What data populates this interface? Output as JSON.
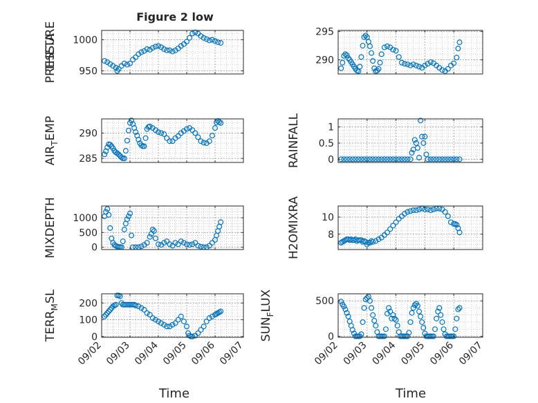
{
  "figure": {
    "title": "Figure 2 low",
    "x_label": "Time"
  },
  "colors": {
    "marker": "#0072bd",
    "axis": "#262626",
    "grid": "#b0b0b0"
  },
  "chart_data": [
    {
      "type": "scatter",
      "ylabel": "PRESSURE",
      "ylim": [
        945,
        1015
      ],
      "yticks": [
        950,
        1000
      ],
      "ytick_labels": [
        "950",
        "1000"
      ],
      "xlim": [
        0,
        5
      ],
      "xticks": [
        0,
        1,
        2,
        3,
        4,
        5
      ],
      "xtick_labels": [
        "09/02",
        "09/03",
        "09/04",
        "09/05",
        "09/06",
        "09/07"
      ],
      "show_xtick_labels": false,
      "grid": true,
      "x": [
        0.1,
        0.2,
        0.3,
        0.4,
        0.5,
        0.55,
        0.6,
        0.7,
        0.8,
        0.9,
        1.0,
        1.1,
        1.2,
        1.3,
        1.4,
        1.5,
        1.6,
        1.7,
        1.8,
        1.9,
        2.0,
        2.1,
        2.2,
        2.3,
        2.4,
        2.5,
        2.6,
        2.7,
        2.8,
        2.9,
        3.0,
        3.1,
        3.2,
        3.3,
        3.4,
        3.5,
        3.6,
        3.7,
        3.8,
        3.9,
        4.0,
        4.1,
        4.2
      ],
      "y": [
        966,
        964,
        961,
        958,
        955,
        950,
        953,
        958,
        962,
        960,
        962,
        968,
        972,
        977,
        980,
        982,
        985,
        984,
        987,
        989,
        990,
        988,
        985,
        983,
        983,
        981,
        983,
        986,
        990,
        993,
        997,
        1003,
        1010,
        1012,
        1010,
        1006,
        1003,
        1001,
        999,
        1000,
        998,
        996,
        995
      ]
    },
    {
      "type": "scatter",
      "ylabel": "THETA",
      "ylim": [
        287.5,
        295.2
      ],
      "yticks": [
        290,
        295
      ],
      "ytick_labels": [
        "290",
        "295"
      ],
      "xlim": [
        0,
        5
      ],
      "xticks": [
        0,
        1,
        2,
        3,
        4,
        5
      ],
      "xtick_labels": [
        "09/02",
        "09/03",
        "09/04",
        "09/05",
        "09/06",
        "09/07"
      ],
      "show_xtick_labels": false,
      "grid": true,
      "x": [
        0.1,
        0.15,
        0.2,
        0.25,
        0.3,
        0.35,
        0.4,
        0.45,
        0.5,
        0.55,
        0.6,
        0.65,
        0.7,
        0.75,
        0.8,
        0.85,
        0.9,
        0.95,
        1.0,
        1.05,
        1.1,
        1.15,
        1.2,
        1.25,
        1.3,
        1.35,
        1.4,
        1.45,
        1.5,
        1.6,
        1.7,
        1.8,
        1.9,
        2.0,
        2.1,
        2.2,
        2.3,
        2.4,
        2.5,
        2.6,
        2.7,
        2.8,
        2.9,
        3.0,
        3.1,
        3.2,
        3.3,
        3.4,
        3.5,
        3.6,
        3.7,
        3.8,
        3.9,
        4.0,
        4.1,
        4.15,
        4.2
      ],
      "y": [
        288.5,
        289.5,
        290.7,
        291,
        290.8,
        290.3,
        290,
        289.6,
        289.2,
        288.8,
        288.4,
        288.1,
        288.0,
        288.8,
        290.5,
        292.5,
        294.0,
        294.3,
        294.0,
        293.2,
        292.4,
        291.2,
        289.8,
        288.5,
        288.0,
        288.1,
        288.4,
        289.5,
        291,
        292.2,
        292.4,
        292.2,
        291.8,
        291.6,
        290.5,
        289.5,
        289.3,
        289.2,
        289.0,
        289.2,
        289.0,
        288.8,
        288.6,
        289.0,
        289.3,
        289.6,
        289.4,
        289.0,
        288.6,
        288.2,
        288.0,
        288.4,
        289.0,
        289.4,
        290.4,
        292.0,
        293.1
      ]
    },
    {
      "type": "scatter",
      "ylabel": "AIR_TEMP",
      "ylim": [
        284.2,
        292.8
      ],
      "yticks": [
        285,
        290
      ],
      "ytick_labels": [
        "285",
        "290"
      ],
      "xlim": [
        0,
        5
      ],
      "xticks": [
        0,
        1,
        2,
        3,
        4,
        5
      ],
      "xtick_labels": [
        "09/02",
        "09/03",
        "09/04",
        "09/05",
        "09/06",
        "09/07"
      ],
      "show_xtick_labels": false,
      "grid": true,
      "x": [
        0.1,
        0.15,
        0.2,
        0.25,
        0.3,
        0.35,
        0.4,
        0.45,
        0.5,
        0.55,
        0.6,
        0.65,
        0.7,
        0.75,
        0.8,
        0.85,
        0.9,
        0.95,
        1.0,
        1.05,
        1.1,
        1.15,
        1.2,
        1.25,
        1.3,
        1.35,
        1.4,
        1.45,
        1.5,
        1.55,
        1.6,
        1.65,
        1.7,
        1.8,
        1.9,
        2.0,
        2.1,
        2.2,
        2.3,
        2.4,
        2.5,
        2.6,
        2.7,
        2.8,
        2.9,
        3.0,
        3.1,
        3.2,
        3.3,
        3.4,
        3.5,
        3.6,
        3.7,
        3.8,
        3.9,
        4.0,
        4.05,
        4.1,
        4.15,
        4.2
      ],
      "y": [
        285.8,
        286.4,
        287.2,
        287.8,
        287.7,
        287.4,
        287.0,
        286.5,
        286.2,
        286.0,
        285.8,
        285.5,
        285.2,
        285.0,
        285.0,
        286.5,
        288.5,
        290.5,
        292.0,
        292.5,
        291.8,
        291.0,
        290.2,
        289.5,
        288.7,
        288.0,
        287.6,
        287.4,
        287.4,
        289.0,
        290.8,
        291.2,
        291.3,
        291.0,
        290.6,
        290.2,
        290.0,
        289.8,
        289.0,
        288.4,
        288.4,
        289.0,
        289.4,
        290.0,
        290.4,
        290.8,
        291.0,
        290.6,
        290.0,
        289.2,
        288.4,
        288.1,
        288.0,
        288.4,
        289.5,
        291.0,
        292.1,
        292.4,
        292.2,
        292.0
      ]
    },
    {
      "type": "scatter",
      "ylabel": "RAINFALL",
      "ylim": [
        -0.1,
        1.25
      ],
      "yticks": [
        0,
        0.5,
        1
      ],
      "ytick_labels": [
        "0",
        "0.5",
        "1"
      ],
      "xlim": [
        0,
        5
      ],
      "xticks": [
        0,
        1,
        2,
        3,
        4,
        5
      ],
      "xtick_labels": [
        "09/02",
        "09/03",
        "09/04",
        "09/05",
        "09/06",
        "09/07"
      ],
      "show_xtick_labels": false,
      "grid": true,
      "x": [
        0.1,
        0.2,
        0.3,
        0.4,
        0.5,
        0.6,
        0.7,
        0.8,
        0.9,
        1.0,
        1.1,
        1.2,
        1.3,
        1.4,
        1.5,
        1.6,
        1.7,
        1.8,
        1.9,
        2.0,
        2.1,
        2.2,
        2.3,
        2.4,
        2.5,
        2.55,
        2.6,
        2.65,
        2.7,
        2.75,
        2.8,
        2.85,
        2.9,
        2.95,
        3.0,
        3.05,
        3.1,
        3.2,
        3.3,
        3.4,
        3.5,
        3.6,
        3.7,
        3.8,
        3.9,
        4.0,
        4.1,
        4.2
      ],
      "y": [
        0,
        0,
        0,
        0,
        0,
        0,
        0,
        0,
        0,
        0,
        0,
        0,
        0,
        0,
        0,
        0,
        0,
        0,
        0,
        0,
        0,
        0,
        0,
        0,
        0,
        0.2,
        0.3,
        0.6,
        0.5,
        0.35,
        0.05,
        1.2,
        0.7,
        0.5,
        0.7,
        0.15,
        0,
        0,
        0,
        0,
        0,
        0,
        0,
        0,
        0,
        0,
        0,
        0
      ]
    },
    {
      "type": "scatter",
      "ylabel": "MIXDEPTH",
      "ylim": [
        -80,
        1400
      ],
      "yticks": [
        0,
        500,
        1000
      ],
      "ytick_labels": [
        "0",
        "500",
        "1000"
      ],
      "xlim": [
        0,
        5
      ],
      "xticks": [
        0,
        1,
        2,
        3,
        4,
        5
      ],
      "xtick_labels": [
        "09/02",
        "09/03",
        "09/04",
        "09/05",
        "09/06",
        "09/07"
      ],
      "show_xtick_labels": false,
      "grid": true,
      "x": [
        0.1,
        0.15,
        0.2,
        0.25,
        0.3,
        0.35,
        0.4,
        0.45,
        0.5,
        0.55,
        0.6,
        0.65,
        0.7,
        0.75,
        0.8,
        0.85,
        0.9,
        0.95,
        1.0,
        1.05,
        1.1,
        1.2,
        1.3,
        1.4,
        1.5,
        1.6,
        1.7,
        1.75,
        1.8,
        1.85,
        1.9,
        2.0,
        2.1,
        2.2,
        2.3,
        2.4,
        2.5,
        2.6,
        2.7,
        2.8,
        2.9,
        3.0,
        3.1,
        3.2,
        3.3,
        3.4,
        3.5,
        3.6,
        3.7,
        3.8,
        3.9,
        4.0,
        4.05,
        4.1,
        4.15,
        4.2
      ],
      "y": [
        1050,
        1200,
        1300,
        1100,
        650,
        300,
        150,
        80,
        50,
        20,
        10,
        5,
        0,
        200,
        600,
        800,
        950,
        1050,
        1150,
        400,
        0,
        0,
        0,
        30,
        80,
        150,
        350,
        450,
        600,
        550,
        300,
        100,
        80,
        150,
        200,
        100,
        50,
        150,
        100,
        200,
        150,
        100,
        80,
        100,
        150,
        50,
        20,
        0,
        0,
        50,
        150,
        250,
        400,
        550,
        700,
        850
      ]
    },
    {
      "type": "scatter",
      "ylabel": "H2OMIXRA",
      "ylim": [
        6.2,
        11.3
      ],
      "yticks": [
        8,
        10
      ],
      "ytick_labels": [
        "8",
        "10"
      ],
      "xlim": [
        0,
        5
      ],
      "xticks": [
        0,
        1,
        2,
        3,
        4,
        5
      ],
      "xtick_labels": [
        "09/02",
        "09/03",
        "09/04",
        "09/05",
        "09/06",
        "09/07"
      ],
      "show_xtick_labels": false,
      "grid": true,
      "x": [
        0.1,
        0.15,
        0.2,
        0.25,
        0.3,
        0.35,
        0.4,
        0.45,
        0.5,
        0.55,
        0.6,
        0.65,
        0.7,
        0.75,
        0.8,
        0.85,
        0.9,
        0.95,
        1.0,
        1.05,
        1.1,
        1.15,
        1.2,
        1.3,
        1.4,
        1.5,
        1.6,
        1.7,
        1.8,
        1.9,
        2.0,
        2.1,
        2.2,
        2.3,
        2.4,
        2.5,
        2.6,
        2.7,
        2.8,
        2.9,
        3.0,
        3.1,
        3.2,
        3.3,
        3.4,
        3.5,
        3.6,
        3.7,
        3.8,
        3.9,
        4.0,
        4.05,
        4.1,
        4.15,
        4.2
      ],
      "y": [
        7.0,
        7.1,
        7.2,
        7.3,
        7.4,
        7.4,
        7.3,
        7.4,
        7.3,
        7.3,
        7.4,
        7.2,
        7.3,
        7.3,
        7.3,
        7.1,
        7.2,
        7.1,
        6.8,
        7.0,
        7.0,
        7.2,
        7.1,
        7.2,
        7.4,
        7.6,
        7.9,
        8.2,
        8.6,
        9.0,
        9.4,
        9.8,
        10.1,
        10.4,
        10.6,
        10.7,
        10.8,
        10.8,
        10.9,
        11.0,
        10.9,
        10.9,
        10.8,
        10.9,
        11.0,
        11.0,
        10.9,
        10.6,
        10.1,
        9.4,
        9.2,
        9.2,
        9.1,
        8.7,
        8.2
      ]
    },
    {
      "type": "scatter",
      "ylabel": "TERR_MSL",
      "ylim": [
        -5,
        255
      ],
      "yticks": [
        0,
        100,
        200
      ],
      "ytick_labels": [
        "0",
        "100",
        "200"
      ],
      "xlim": [
        0,
        5
      ],
      "xticks": [
        0,
        1,
        2,
        3,
        4,
        5
      ],
      "xtick_labels": [
        "09/02",
        "09/03",
        "09/04",
        "09/05",
        "09/06",
        "09/07"
      ],
      "show_xtick_labels": true,
      "grid": true,
      "x": [
        0.1,
        0.15,
        0.2,
        0.25,
        0.3,
        0.35,
        0.4,
        0.45,
        0.5,
        0.55,
        0.6,
        0.65,
        0.7,
        0.75,
        0.8,
        0.85,
        0.9,
        0.95,
        1.0,
        1.05,
        1.1,
        1.15,
        1.2,
        1.3,
        1.4,
        1.5,
        1.6,
        1.7,
        1.8,
        1.9,
        2.0,
        2.1,
        2.2,
        2.3,
        2.4,
        2.5,
        2.6,
        2.7,
        2.8,
        2.9,
        3.0,
        3.05,
        3.1,
        3.15,
        3.2,
        3.3,
        3.4,
        3.5,
        3.6,
        3.7,
        3.8,
        3.9,
        4.0,
        4.05,
        4.1,
        4.15,
        4.2
      ],
      "y": [
        120,
        130,
        140,
        150,
        160,
        170,
        180,
        185,
        190,
        245,
        245,
        240,
        200,
        190,
        190,
        190,
        190,
        190,
        190,
        190,
        190,
        190,
        185,
        180,
        170,
        160,
        140,
        130,
        110,
        100,
        90,
        80,
        70,
        60,
        60,
        70,
        80,
        100,
        120,
        90,
        60,
        20,
        5,
        0,
        0,
        5,
        20,
        40,
        60,
        90,
        110,
        120,
        130,
        135,
        140,
        145,
        150
      ]
    },
    {
      "type": "scatter",
      "ylabel": "SUN_FLUX",
      "ylim": [
        -15,
        600
      ],
      "yticks": [
        0,
        500
      ],
      "ytick_labels": [
        "0",
        "500"
      ],
      "xlim": [
        0,
        5
      ],
      "xticks": [
        0,
        1,
        2,
        3,
        4,
        5
      ],
      "xtick_labels": [
        "09/02",
        "09/03",
        "09/04",
        "09/05",
        "09/06",
        "09/07"
      ],
      "show_xtick_labels": true,
      "grid": true,
      "x": [
        0.1,
        0.15,
        0.2,
        0.25,
        0.3,
        0.35,
        0.4,
        0.45,
        0.5,
        0.55,
        0.6,
        0.65,
        0.7,
        0.75,
        0.8,
        0.85,
        0.9,
        0.95,
        1.0,
        1.05,
        1.1,
        1.15,
        1.2,
        1.25,
        1.3,
        1.35,
        1.4,
        1.45,
        1.5,
        1.55,
        1.6,
        1.65,
        1.7,
        1.75,
        1.8,
        1.85,
        1.9,
        1.95,
        2.0,
        2.05,
        2.1,
        2.15,
        2.2,
        2.25,
        2.3,
        2.35,
        2.4,
        2.45,
        2.5,
        2.55,
        2.6,
        2.65,
        2.7,
        2.75,
        2.8,
        2.85,
        2.9,
        2.95,
        3.0,
        3.05,
        3.1,
        3.15,
        3.2,
        3.25,
        3.3,
        3.35,
        3.4,
        3.45,
        3.5,
        3.55,
        3.6,
        3.65,
        3.7,
        3.75,
        3.8,
        3.85,
        3.9,
        3.95,
        4.0,
        4.05,
        4.1,
        4.15,
        4.2
      ],
      "y": [
        490,
        450,
        420,
        380,
        330,
        280,
        210,
        150,
        90,
        40,
        0,
        0,
        0,
        0,
        30,
        200,
        400,
        520,
        540,
        560,
        500,
        400,
        300,
        220,
        150,
        60,
        0,
        0,
        0,
        0,
        0,
        100,
        320,
        400,
        350,
        250,
        300,
        250,
        230,
        150,
        60,
        0,
        0,
        0,
        0,
        0,
        0,
        50,
        200,
        330,
        400,
        440,
        460,
        430,
        350,
        280,
        200,
        120,
        40,
        0,
        0,
        0,
        0,
        0,
        0,
        100,
        250,
        350,
        400,
        300,
        200,
        100,
        30,
        0,
        0,
        0,
        0,
        0,
        0,
        100,
        250,
        380,
        400
      ]
    }
  ]
}
